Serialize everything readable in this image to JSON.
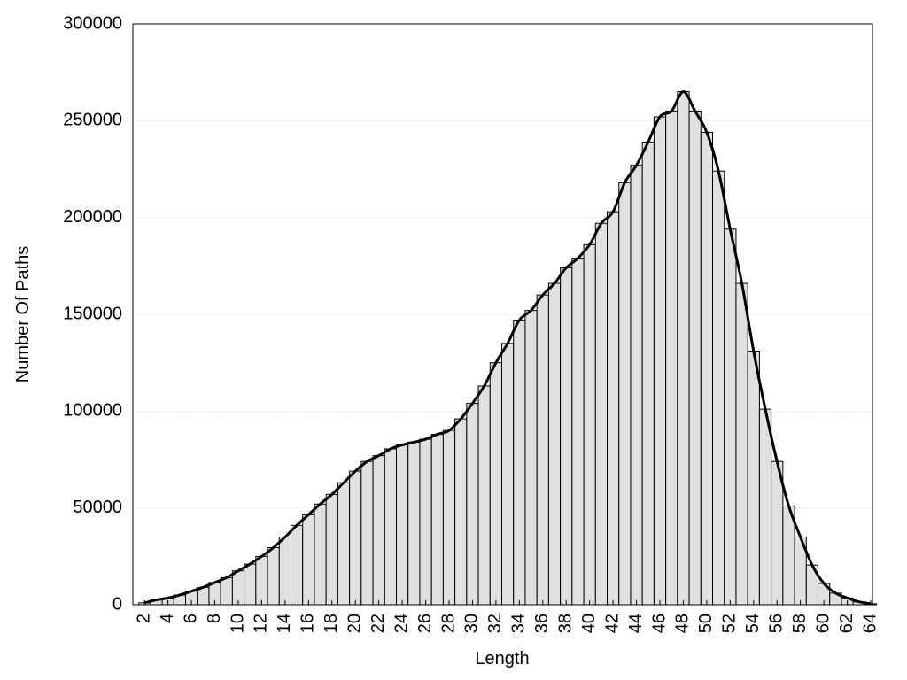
{
  "chart_data": {
    "type": "bar",
    "x": [
      2,
      3,
      4,
      5,
      6,
      7,
      8,
      9,
      10,
      11,
      12,
      13,
      14,
      15,
      16,
      17,
      18,
      19,
      20,
      21,
      22,
      23,
      24,
      25,
      26,
      27,
      28,
      29,
      30,
      31,
      32,
      33,
      34,
      35,
      36,
      37,
      38,
      39,
      40,
      41,
      42,
      43,
      44,
      45,
      46,
      47,
      48,
      49,
      50,
      51,
      52,
      53,
      54,
      55,
      56,
      57,
      58,
      59,
      60,
      61,
      62,
      63,
      64
    ],
    "values": [
      1000,
      2500,
      3500,
      5000,
      7000,
      9000,
      11500,
      14000,
      17500,
      21000,
      25000,
      29500,
      35000,
      41000,
      46500,
      52000,
      57000,
      63000,
      69000,
      74000,
      77000,
      80500,
      82500,
      84000,
      85500,
      88000,
      90000,
      96000,
      104000,
      113000,
      125000,
      135000,
      147000,
      152000,
      160000,
      166000,
      174000,
      179000,
      186000,
      197000,
      203000,
      218000,
      227000,
      239000,
      252000,
      255000,
      265000,
      255000,
      244000,
      224000,
      194000,
      166000,
      131000,
      101000,
      74000,
      51000,
      35000,
      20500,
      11000,
      6000,
      3500,
      1500,
      500
    ],
    "color": "#e0e0e0",
    "smooth_line": true,
    "line_color": "#000000",
    "xlabel": "Length",
    "ylabel": "Number Of Paths",
    "xlim": [
      1,
      64.15
    ],
    "xticks": [
      2,
      4,
      6,
      8,
      10,
      12,
      14,
      16,
      18,
      20,
      22,
      24,
      26,
      28,
      30,
      32,
      34,
      36,
      38,
      40,
      42,
      44,
      46,
      48,
      50,
      52,
      54,
      56,
      58,
      60,
      62,
      64
    ],
    "ylim": [
      0,
      300000
    ],
    "yticks": [
      0,
      50000,
      100000,
      150000,
      200000,
      250000,
      300000
    ],
    "grid": true
  }
}
